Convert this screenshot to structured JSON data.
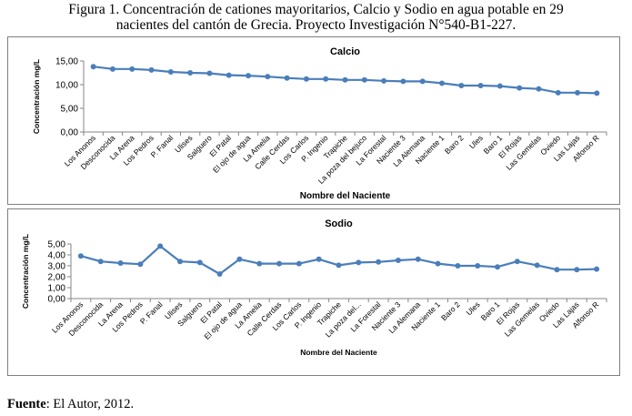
{
  "caption": {
    "line1": "Figura 1. Concentración de cationes mayoritarios, Calcio y Sodio en agua potable en 29",
    "line2": "nacientes del cantón de Grecia. Proyecto Investigación N°540-B1-227."
  },
  "source": {
    "label": "Fuente",
    "text": ": El Autor, 2012."
  },
  "colors": {
    "line": "#4a7ebb",
    "axis": "#868686"
  },
  "chart_data": [
    {
      "type": "line",
      "title": "Calcio",
      "xlabel": "Nombre del Naciente",
      "ylabel": "Concentración mg/L",
      "ylim": [
        0,
        15
      ],
      "yticks": [
        "0,00",
        "5,00",
        "10,00",
        "15,00"
      ],
      "ytick_values": [
        0,
        5,
        10,
        15
      ],
      "grid": false,
      "legend": "none",
      "categories": [
        "Los Anonos",
        "Desconocida",
        "La Arena",
        "Los Pedros",
        "P. Fanal",
        "Ulises",
        "Salguero",
        "El Patal",
        "El ojo de agua",
        "La Amelia",
        "Calle Cerdas",
        "Los Carlos",
        "P. Ingenio",
        "Trapiche",
        "La poza del bejuco",
        "La Forestal",
        "Naciente 3",
        "La Alemana",
        "Naciente 1",
        "Baro 2",
        "Ules",
        "Baro 1",
        "El Rojas",
        "Las Gemelas",
        "Oviedo",
        "Las Lajas",
        "Alfonso R"
      ],
      "series": [
        {
          "values": [
            13.8,
            13.3,
            13.3,
            13.1,
            12.7,
            12.5,
            12.4,
            12.0,
            11.9,
            11.7,
            11.4,
            11.2,
            11.2,
            11.0,
            11.0,
            10.8,
            10.7,
            10.7,
            10.3,
            9.8,
            9.8,
            9.7,
            9.3,
            9.1,
            8.3,
            8.3,
            8.2
          ]
        }
      ]
    },
    {
      "type": "line",
      "title": "Sodio",
      "xlabel": "Nombre del Naciente",
      "ylabel": "Concentración mg/L",
      "ylim": [
        0,
        5
      ],
      "yticks": [
        "0,00",
        "1,00",
        "2,00",
        "3,00",
        "4,00",
        "5,00"
      ],
      "ytick_values": [
        0,
        1,
        2,
        3,
        4,
        5
      ],
      "grid": false,
      "legend": "none",
      "categories": [
        "Los Anonos",
        "Desconocida",
        "La Arena",
        "Los Pedros",
        "P. Fanal",
        "Ulises",
        "Salguero",
        "El Patal",
        "El ojo de agua",
        "La Amelia",
        "Calle Cerdas",
        "Los Carlos",
        "P. Ingenio",
        "Trapiche",
        "La poza del...",
        "La Forestal",
        "Naciente 3",
        "La Alemana",
        "Naciente 1",
        "Baro 2",
        "Ules",
        "Baro 1",
        "El Rojas",
        "Las Gemelas",
        "Oviedo",
        "Las Lajas",
        "Alfonso R"
      ],
      "series": [
        {
          "values": [
            3.9,
            3.4,
            3.25,
            3.15,
            4.8,
            3.4,
            3.3,
            2.25,
            3.6,
            3.2,
            3.2,
            3.2,
            3.6,
            3.05,
            3.3,
            3.35,
            3.5,
            3.6,
            3.2,
            3.0,
            3.0,
            2.9,
            3.4,
            3.05,
            2.65,
            2.65,
            2.7
          ]
        }
      ]
    }
  ]
}
